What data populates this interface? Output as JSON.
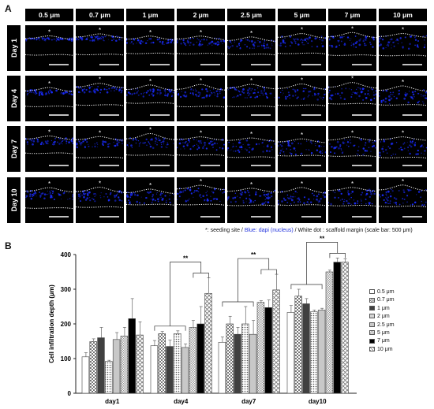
{
  "panel_a": {
    "label": "A",
    "columns": [
      "0.5 μm",
      "0.7 μm",
      "1 μm",
      "2 μm",
      "2.5 μm",
      "5 μm",
      "7 μm",
      "10 μm"
    ],
    "rows": [
      "Day 1",
      "Day 4",
      "Day 7",
      "Day 10"
    ],
    "seeding_marker": "*",
    "caption": {
      "part1": "*: seeding site / ",
      "part2": "Blue: dapi (nucleus)",
      "part3": " / White dot : scaffold margin (scale bar: 500 μm)"
    },
    "colors": {
      "tile_bg": "#000000",
      "nucleus": "#1a2cff",
      "margin": "#ffffff"
    }
  },
  "panel_b": {
    "label": "B",
    "significance": "**",
    "legend_title_hidden": "",
    "colors": {
      "fill_white": "#ffffff",
      "fill_light": "#c8c8c8",
      "fill_dark": "#404040",
      "fill_black": "#000000"
    }
  },
  "chart_data": {
    "type": "bar",
    "ylabel": "Cell infiltration depth (μm)",
    "xlabel": "",
    "ylim": [
      0,
      400
    ],
    "yticks": [
      "0",
      "100",
      "200",
      "300",
      "400"
    ],
    "categories": [
      "day1",
      "day4",
      "day7",
      "day10"
    ],
    "series": [
      {
        "name": "0.5 μm",
        "pattern": "white",
        "values": [
          105,
          137,
          147,
          233
        ],
        "errors": [
          12,
          15,
          15,
          20
        ]
      },
      {
        "name": "0.7 μm",
        "pattern": "checker",
        "values": [
          149,
          172,
          200,
          280
        ],
        "errors": [
          8,
          6,
          22,
          20
        ]
      },
      {
        "name": "1 μm",
        "pattern": "dark",
        "values": [
          160,
          135,
          170,
          258
        ],
        "errors": [
          30,
          18,
          20,
          15
        ]
      },
      {
        "name": "2 μm",
        "pattern": "dots",
        "values": [
          92,
          172,
          200,
          235
        ],
        "errors": [
          3,
          8,
          50,
          5
        ]
      },
      {
        "name": "2.5 μm",
        "pattern": "light",
        "values": [
          155,
          132,
          170,
          240
        ],
        "errors": [
          20,
          10,
          40,
          5
        ]
      },
      {
        "name": "5 μm",
        "pattern": "smallcheck",
        "values": [
          165,
          190,
          262,
          350
        ],
        "errors": [
          25,
          20,
          5,
          5
        ]
      },
      {
        "name": "7 μm",
        "pattern": "black",
        "values": [
          215,
          200,
          247,
          378
        ],
        "errors": [
          58,
          50,
          22,
          12
        ]
      },
      {
        "name": "10 μm",
        "pattern": "crosshatch",
        "values": [
          168,
          288,
          298,
          378
        ],
        "errors": [
          38,
          45,
          45,
          10
        ]
      }
    ],
    "grid": false,
    "legend_position": "right"
  }
}
